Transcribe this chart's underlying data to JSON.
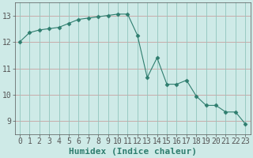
{
  "x": [
    0,
    1,
    2,
    3,
    4,
    5,
    6,
    7,
    8,
    9,
    10,
    11,
    12,
    13,
    14,
    15,
    16,
    17,
    18,
    19,
    20,
    21,
    22,
    23
  ],
  "y": [
    12.0,
    12.35,
    12.45,
    12.5,
    12.55,
    12.7,
    12.85,
    12.9,
    12.95,
    13.0,
    13.05,
    13.05,
    12.25,
    10.65,
    11.4,
    10.4,
    10.4,
    10.55,
    9.95,
    9.6,
    9.6,
    9.35,
    9.35,
    8.9
  ],
  "line_color": "#2e7d6e",
  "marker": "D",
  "marker_size": 2.5,
  "bg_color": "#ceeae7",
  "grid_color_h": "#c8a0a0",
  "grid_color_v": "#90c4bc",
  "xlabel": "Humidex (Indice chaleur)",
  "xlabel_fontsize": 8,
  "tick_fontsize": 7,
  "xlim": [
    -0.5,
    23.5
  ],
  "ylim": [
    8.5,
    13.5
  ],
  "yticks": [
    9,
    10,
    11,
    12,
    13
  ],
  "xticks": [
    0,
    1,
    2,
    3,
    4,
    5,
    6,
    7,
    8,
    9,
    10,
    11,
    12,
    13,
    14,
    15,
    16,
    17,
    18,
    19,
    20,
    21,
    22,
    23
  ]
}
